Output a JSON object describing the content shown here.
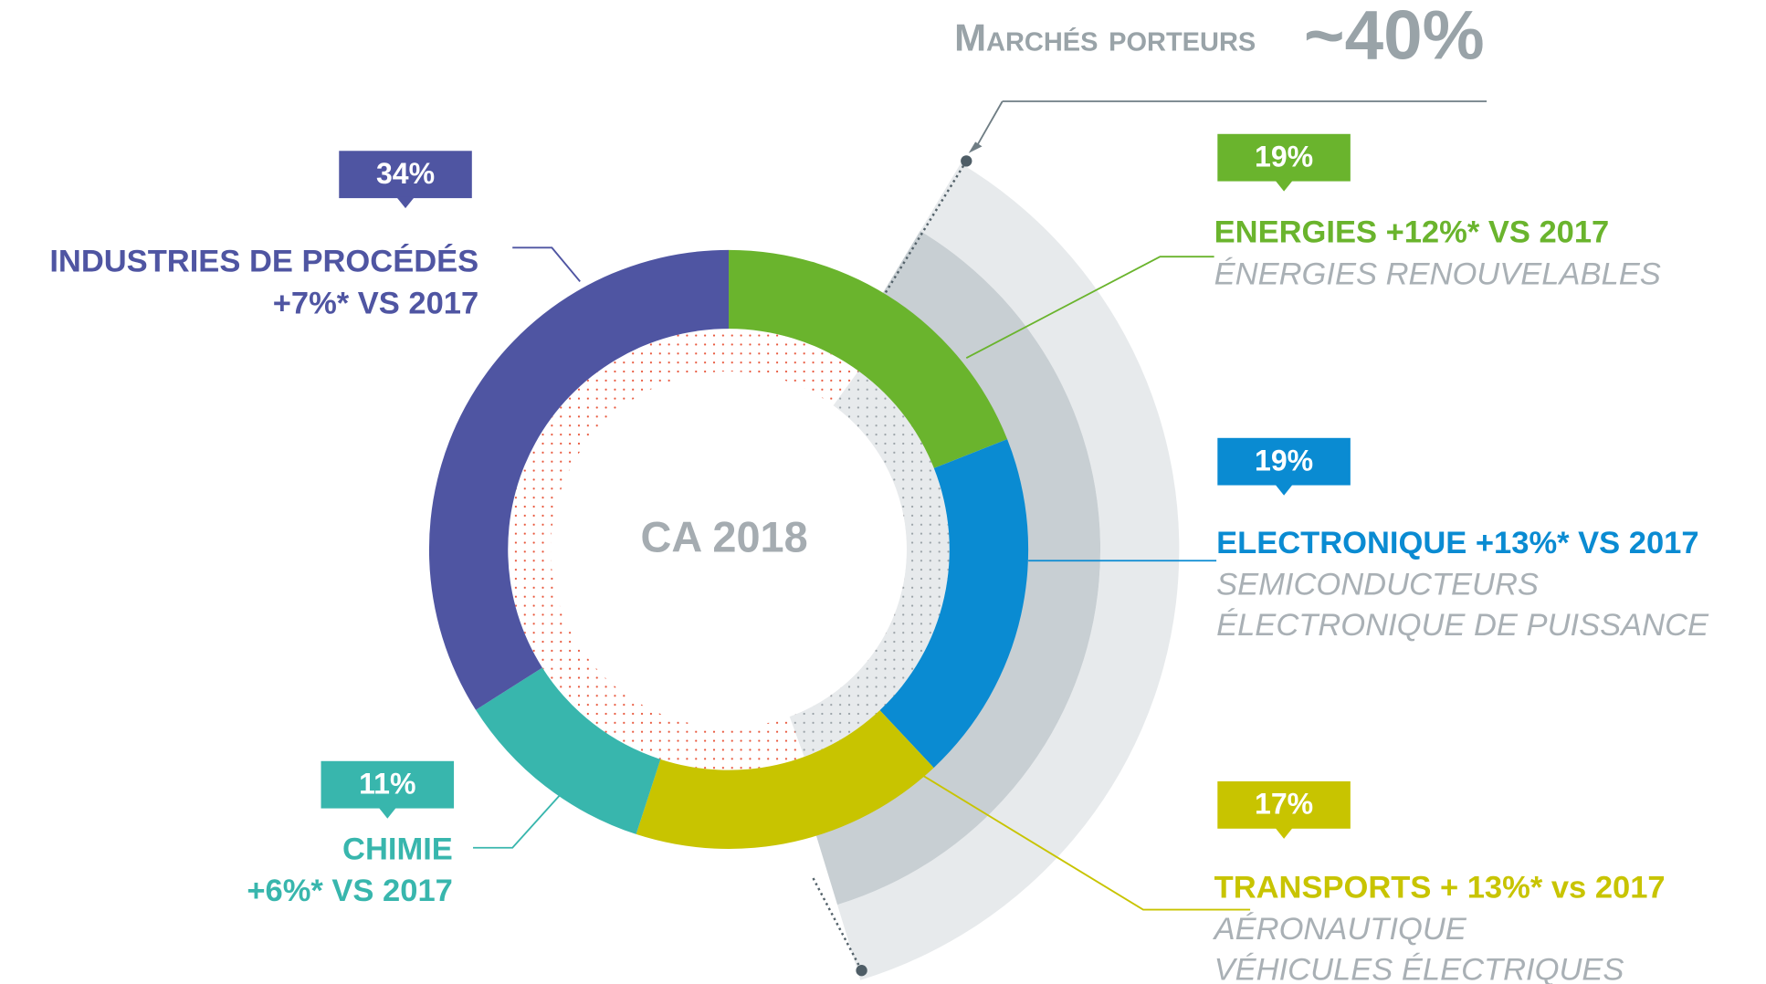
{
  "chart_data": {
    "type": "donut",
    "center_label": "CA 2018",
    "highlight_label": "Marchés porteurs",
    "highlight_value": "~40%",
    "labels": [
      [
        "ENERGIES +12%* VS 2017"
      ],
      [
        "ELECTRONIQUE +13%* VS 2017"
      ],
      [
        "TRANSPORTS + 13%* vs 2017"
      ],
      [
        "CHIMIE",
        "+6%* VS 2017"
      ],
      [
        "INDUSTRIES DE PROCÉDÉS",
        "+7%* VS 2017"
      ]
    ],
    "details": [
      [
        "ÉNERGIES RENOUVELABLES"
      ],
      [
        "SEMICONDUCTEURS",
        "ÉLECTRONIQUE DE PUISSANCE"
      ],
      [
        "AÉRONAUTIQUE",
        "VÉHICULES ÉLECTRIQUES"
      ],
      [],
      []
    ],
    "values": [
      19,
      19,
      17,
      11,
      34
    ],
    "value_labels": [
      "19%",
      "19%",
      "17%",
      "11%",
      "34%"
    ],
    "colors": [
      "#6ab42d",
      "#0a8bd2",
      "#c8c400",
      "#38b6ad",
      "#4f55a2"
    ]
  }
}
